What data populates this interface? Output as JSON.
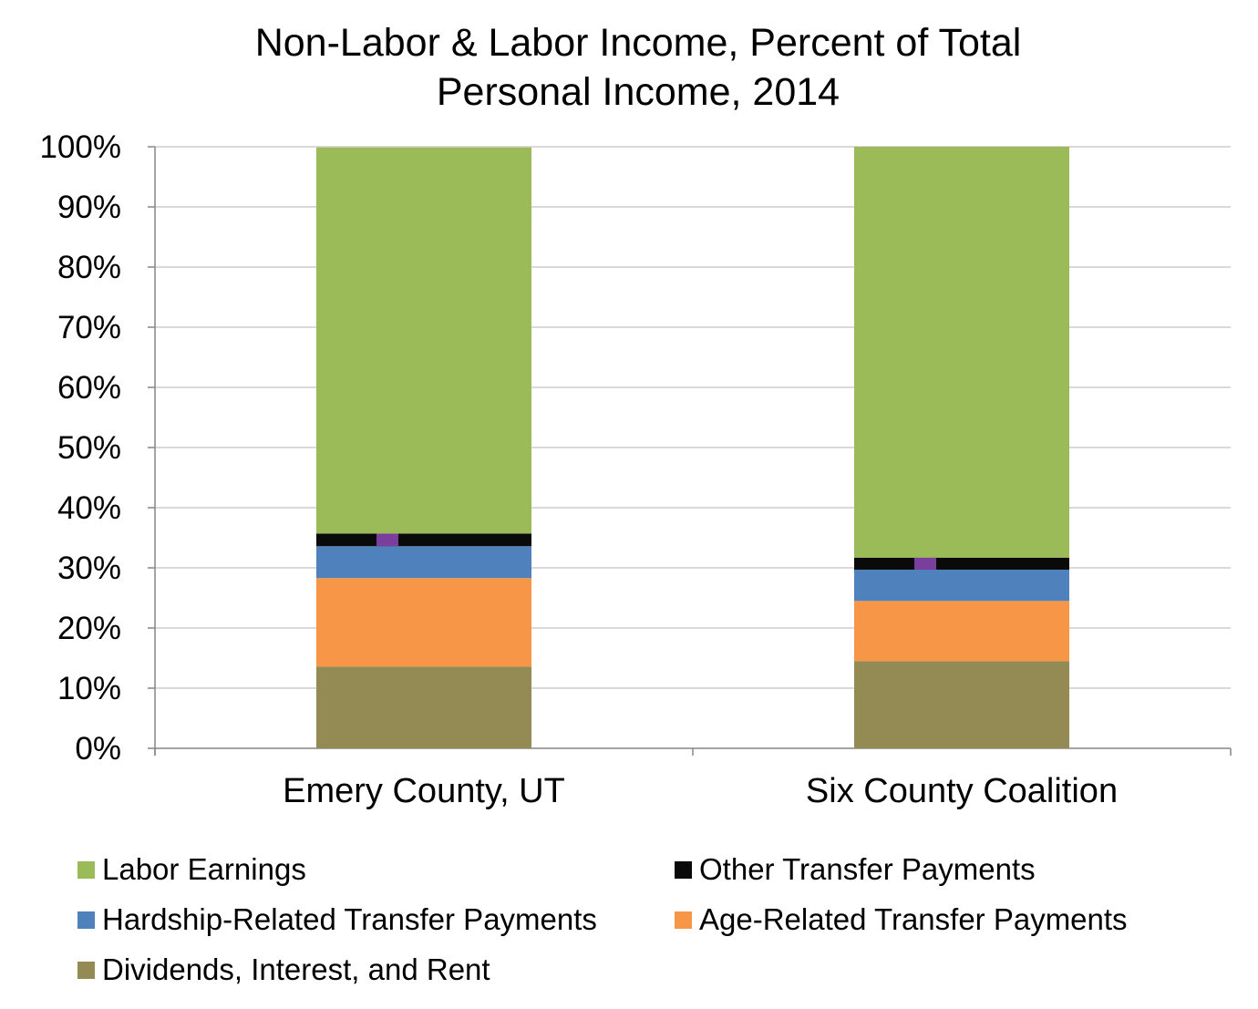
{
  "chart_data": {
    "type": "bar",
    "stacked": true,
    "title_lines": [
      "Non-Labor & Labor Income, Percent of Total",
      "Personal Income, 2014"
    ],
    "categories": [
      "Emery County, UT",
      "Six County Coalition"
    ],
    "ylim": [
      0,
      100
    ],
    "yticks": [
      "0%",
      "10%",
      "20%",
      "30%",
      "40%",
      "50%",
      "60%",
      "70%",
      "80%",
      "90%",
      "100%"
    ],
    "grid": true,
    "legend_position": "bottom",
    "series": [
      {
        "name": "Dividends, Interest, and Rent",
        "color": "#948A54",
        "values": [
          13.6,
          14.5
        ]
      },
      {
        "name": "Age-Related Transfer Payments",
        "color": "#F79646",
        "values": [
          14.7,
          10.0
        ]
      },
      {
        "name": "Hardship-Related Transfer Payments",
        "color": "#4F81BD",
        "values": [
          5.3,
          5.2
        ]
      },
      {
        "name": "Other Transfer Payments",
        "color": "#0A0A0A",
        "values": [
          2.1,
          2.0
        ]
      },
      {
        "name": "Labor Earnings",
        "color": "#9BBB59",
        "values": [
          64.2,
          68.3
        ]
      }
    ],
    "legend_order": [
      "Labor Earnings",
      "Other Transfer Payments",
      "Hardship-Related Transfer Payments",
      "Age-Related Transfer Payments",
      "Dividends, Interest, and Rent"
    ],
    "marker_color": "#7A3F9D"
  }
}
